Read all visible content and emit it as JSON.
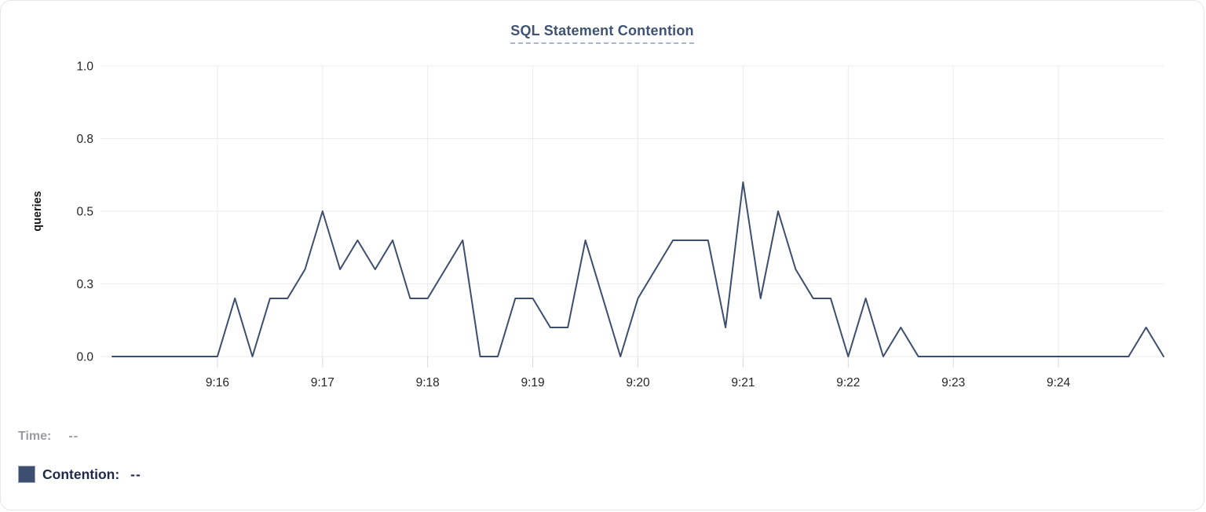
{
  "header": {
    "title": "SQL Statement Contention"
  },
  "chart_data": {
    "type": "line",
    "title": "SQL Statement Contention",
    "xlabel": "",
    "ylabel": "queries",
    "ylim": [
      0,
      1
    ],
    "grid": true,
    "legend_position": "bottom-left",
    "y_ticks": [
      {
        "value": 0,
        "label": "0.0"
      },
      {
        "value": 0.25,
        "label": "0.3"
      },
      {
        "value": 0.5,
        "label": "0.5"
      },
      {
        "value": 0.75,
        "label": "0.8"
      },
      {
        "value": 1,
        "label": "1.0"
      }
    ],
    "x_ticks": [
      {
        "offset_seconds": 60,
        "label": "9:16"
      },
      {
        "offset_seconds": 120,
        "label": "9:17"
      },
      {
        "offset_seconds": 180,
        "label": "9:18"
      },
      {
        "offset_seconds": 240,
        "label": "9:19"
      },
      {
        "offset_seconds": 300,
        "label": "9:20"
      },
      {
        "offset_seconds": 360,
        "label": "9:21"
      },
      {
        "offset_seconds": 420,
        "label": "9:22"
      },
      {
        "offset_seconds": 480,
        "label": "9:23"
      },
      {
        "offset_seconds": 540,
        "label": "9:24"
      }
    ],
    "x_start": "9:15:00",
    "x_end": "9:25:00",
    "sample_interval_seconds": 10,
    "series": [
      {
        "name": "Contention",
        "unit": "queries",
        "color": "#3d4e6e",
        "values": [
          0,
          0,
          0,
          0,
          0,
          0,
          0,
          0.2,
          0,
          0.2,
          0.2,
          0.3,
          0.5,
          0.3,
          0.4,
          0.3,
          0.4,
          0.2,
          0.2,
          0.3,
          0.4,
          0,
          0,
          0.2,
          0.2,
          0.1,
          0.1,
          0.4,
          0.2,
          0,
          0.2,
          0.3,
          0.4,
          0.4,
          0.4,
          0.1,
          0.6,
          0.2,
          0.5,
          0.3,
          0.2,
          0.2,
          0,
          0.2,
          0,
          0.1,
          0,
          0,
          0,
          0,
          0,
          0,
          0,
          0,
          0,
          0,
          0,
          0,
          0,
          0.1,
          0
        ]
      }
    ]
  },
  "legend": {
    "time_label": "Time:",
    "time_value": "--",
    "contention_label": "Contention:",
    "contention_value": "--",
    "swatch_color": "#3d4e6e"
  },
  "colors": {
    "line": "#3d4e6e",
    "title": "#3f5474",
    "title_underline": "#a9b3d4",
    "grid": "#ececec",
    "tick": "#d9d9d9",
    "axis_text": "#262626",
    "time_text": "#9b9ba3",
    "contention_text": "#1e2a47"
  }
}
